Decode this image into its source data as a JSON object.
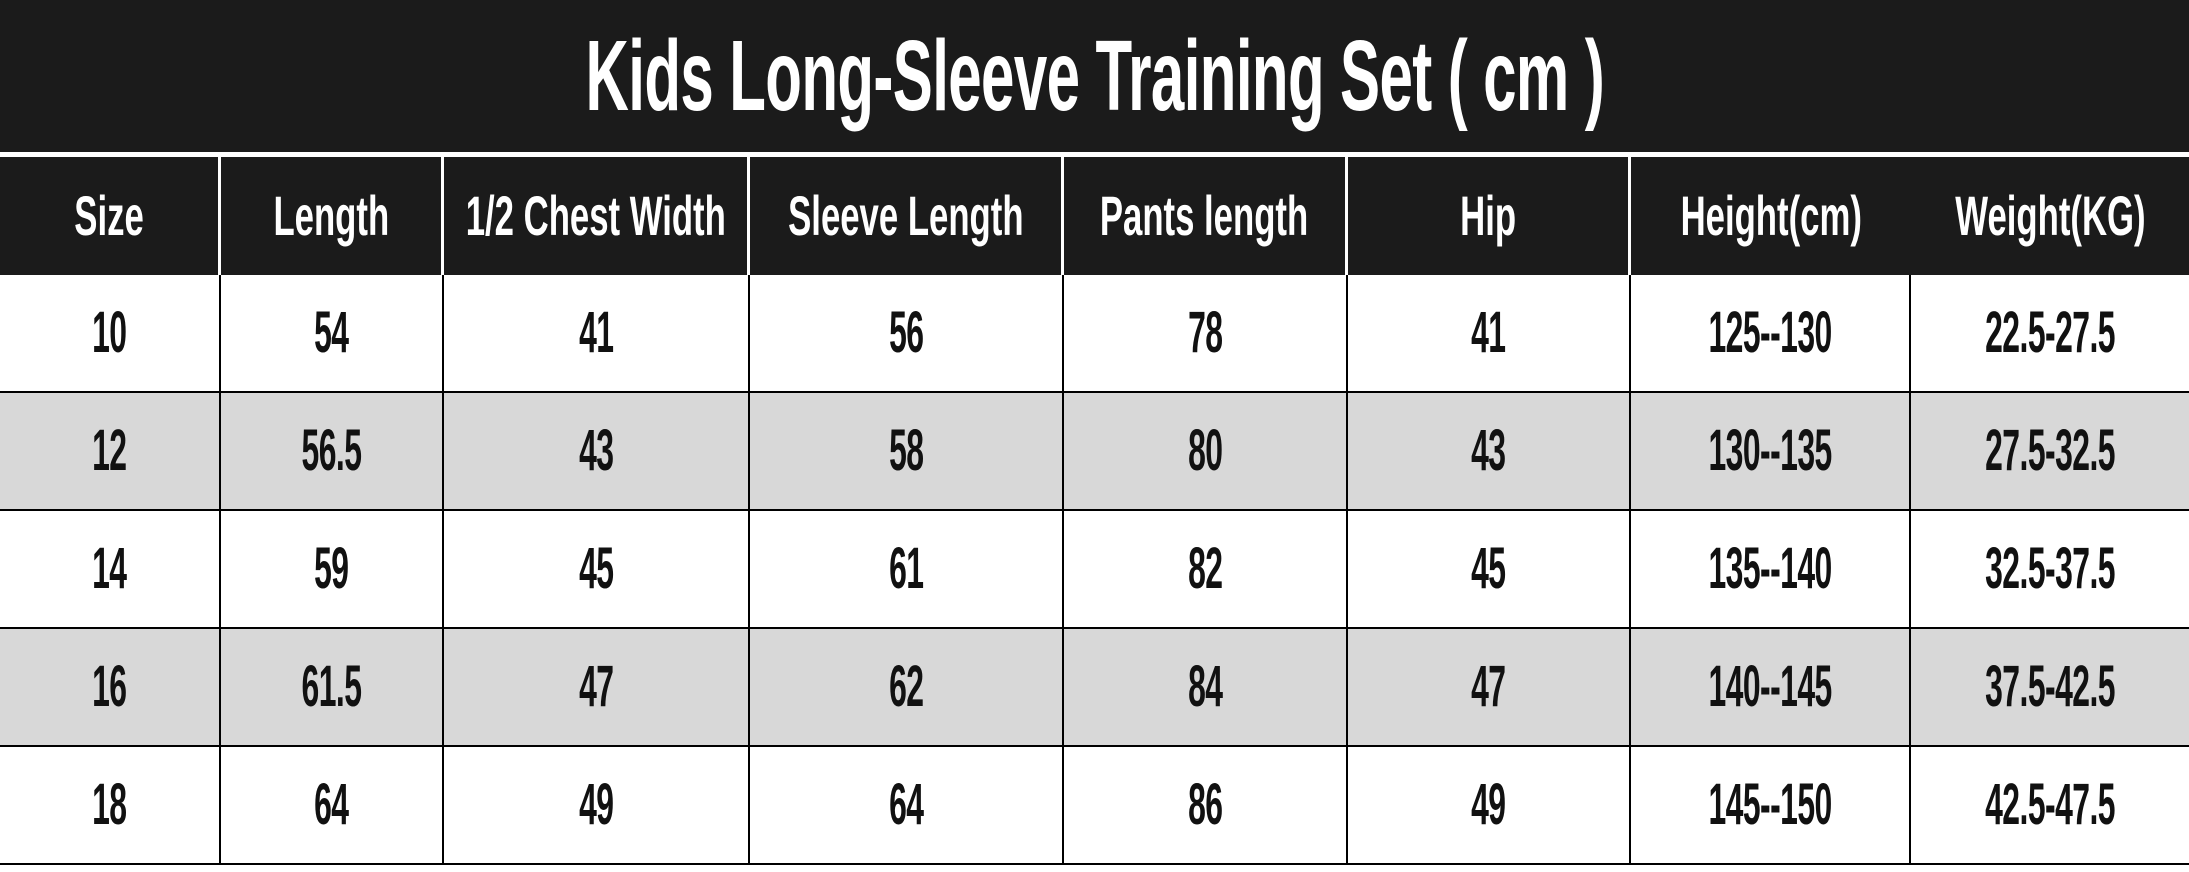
{
  "title": "Kids Long-Sleeve Training Set ( cm )",
  "table": {
    "columns": [
      "Size",
      "Length",
      "1/2 Chest Width",
      "Sleeve Length",
      "Pants length",
      "Hip",
      "Height(cm)",
      "Weight(KG)"
    ],
    "rows": [
      [
        "10",
        "54",
        "41",
        "56",
        "78",
        "41",
        "125--130",
        "22.5-27.5"
      ],
      [
        "12",
        "56.5",
        "43",
        "58",
        "80",
        "43",
        "130--135",
        "27.5-32.5"
      ],
      [
        "14",
        "59",
        "45",
        "61",
        "82",
        "45",
        "135--140",
        "32.5-37.5"
      ],
      [
        "16",
        "61.5",
        "47",
        "62",
        "84",
        "47",
        "140--145",
        "37.5-42.5"
      ],
      [
        "18",
        "64",
        "49",
        "64",
        "86",
        "49",
        "145--150",
        "42.5-47.5"
      ]
    ]
  },
  "colors": {
    "header_bg": "#1b1b1b",
    "header_text": "#ffffff",
    "row_bg": "#ffffff",
    "stripe_bg": "#d8d8d8",
    "data_text": "#111111",
    "border": "#000000"
  },
  "chart_data": {
    "type": "table",
    "title": "Kids Long-Sleeve Training Set ( cm )",
    "columns": [
      "Size",
      "Length",
      "1/2 Chest Width",
      "Sleeve Length",
      "Pants length",
      "Hip",
      "Height(cm)",
      "Weight(KG)"
    ],
    "rows": [
      [
        "10",
        "54",
        "41",
        "56",
        "78",
        "41",
        "125--130",
        "22.5-27.5"
      ],
      [
        "12",
        "56.5",
        "43",
        "58",
        "80",
        "43",
        "130--135",
        "27.5-32.5"
      ],
      [
        "14",
        "59",
        "45",
        "61",
        "82",
        "45",
        "135--140",
        "32.5-37.5"
      ],
      [
        "16",
        "61.5",
        "47",
        "62",
        "84",
        "47",
        "140--145",
        "37.5-42.5"
      ],
      [
        "18",
        "64",
        "49",
        "64",
        "86",
        "49",
        "145--150",
        "42.5-47.5"
      ]
    ],
    "layout": {
      "striped_rows": true,
      "header_style": "black-bar",
      "units": "cm"
    }
  }
}
